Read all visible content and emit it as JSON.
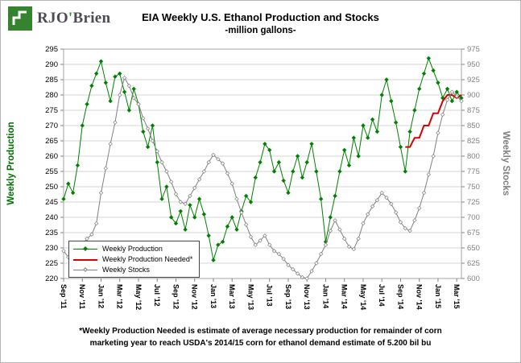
{
  "logo": {
    "prefix": "RJO",
    "apostrophe": "'",
    "suffix": "Brien"
  },
  "colors": {
    "brand_green": "#35822f",
    "brand_text": "#4b4b52",
    "production_green": "#008000",
    "needed_red": "#d80000",
    "stocks_gray": "#808080"
  },
  "footnote": {
    "line1": "*Weekly Production Needed is estimate of average necessary production for remainder of corn",
    "line2": "marketing year to reach USDA's 2014/15 corn for ethanol demand estimate of 5.200 bil bu"
  },
  "chart_data": {
    "type": "line",
    "title": "EIA Weekly U.S. Ethanol Production and Stocks",
    "subtitle": "-million gallons-",
    "grid_color": "#d4d4d4",
    "legend_position": "bottom-left-inside",
    "x_tick_labels": [
      "Sep '11",
      "Nov '11",
      "Jan '12",
      "Mar '12",
      "May '12",
      "Jul '12",
      "Sep '12",
      "Nov '12",
      "Jan '13",
      "Mar '13",
      "May '13",
      "Jul '13",
      "Sep '13",
      "Nov '13",
      "Jan '14",
      "Mar '14",
      "May '14",
      "Jul '14",
      "Sep '14",
      "Nov '14",
      "Jan '15",
      "Mar '15"
    ],
    "points_per_tick": 4,
    "left_axis": {
      "label": "Weekly Production",
      "min": 220,
      "max": 295,
      "step": 5,
      "color": "#007000",
      "tick_color": "#000000"
    },
    "right_axis": {
      "label": "Weekly Stocks",
      "min": 600,
      "max": 975,
      "step": 25,
      "color": "#7f7f7f",
      "tick_color": "#7f7f7f"
    },
    "series": [
      {
        "id": "weekly-production",
        "name": "Weekly Production",
        "axis": "left",
        "color": "#008000",
        "marker": "diamond",
        "marker_fill": "#008000",
        "width": 1,
        "values": [
          246,
          251,
          248,
          257,
          270,
          277,
          283,
          287,
          291,
          284,
          278,
          286,
          287,
          281,
          275,
          282,
          277,
          268,
          263,
          270,
          258,
          246,
          250,
          240,
          238,
          242,
          236,
          244,
          240,
          246,
          241,
          234,
          226,
          231,
          232,
          237,
          240,
          236,
          242,
          247,
          245,
          253,
          258,
          264,
          262,
          255,
          258,
          252,
          248,
          255,
          260,
          253,
          258,
          264,
          255,
          246,
          232,
          240,
          247,
          255,
          262,
          257,
          266,
          260,
          270,
          266,
          272,
          268,
          280,
          285,
          278,
          271,
          263,
          255,
          268,
          275,
          282,
          287,
          292,
          288,
          284,
          279,
          282,
          278,
          281,
          279
        ]
      },
      {
        "id": "weekly-production-needed",
        "name": "Weekly Production Needed*",
        "axis": "left",
        "color": "#d80000",
        "width": 2,
        "start_index": 73,
        "values": [
          263,
          263,
          266,
          266,
          270,
          270,
          274,
          274,
          278,
          280,
          280,
          279,
          280
        ]
      },
      {
        "id": "weekly-stocks",
        "name": "Weekly Stocks",
        "axis": "right",
        "color": "#808080",
        "marker": "diamond",
        "marker_fill": "#ffffff",
        "width": 1,
        "values": [
          645,
          635,
          628,
          642,
          655,
          665,
          672,
          690,
          740,
          780,
          820,
          855,
          900,
          928,
          915,
          895,
          885,
          862,
          845,
          825,
          808,
          790,
          775,
          758,
          738,
          725,
          722,
          735,
          748,
          762,
          775,
          790,
          802,
          795,
          788,
          772,
          755,
          730,
          708,
          688,
          668,
          655,
          662,
          670,
          655,
          645,
          640,
          632,
          622,
          615,
          608,
          602,
          600,
          612,
          625,
          640,
          655,
          678,
          695,
          680,
          665,
          652,
          648,
          665,
          690,
          705,
          718,
          728,
          740,
          732,
          722,
          708,
          692,
          682,
          678,
          695,
          715,
          740,
          770,
          800,
          838,
          868,
          892,
          905,
          898,
          890
        ]
      }
    ]
  }
}
